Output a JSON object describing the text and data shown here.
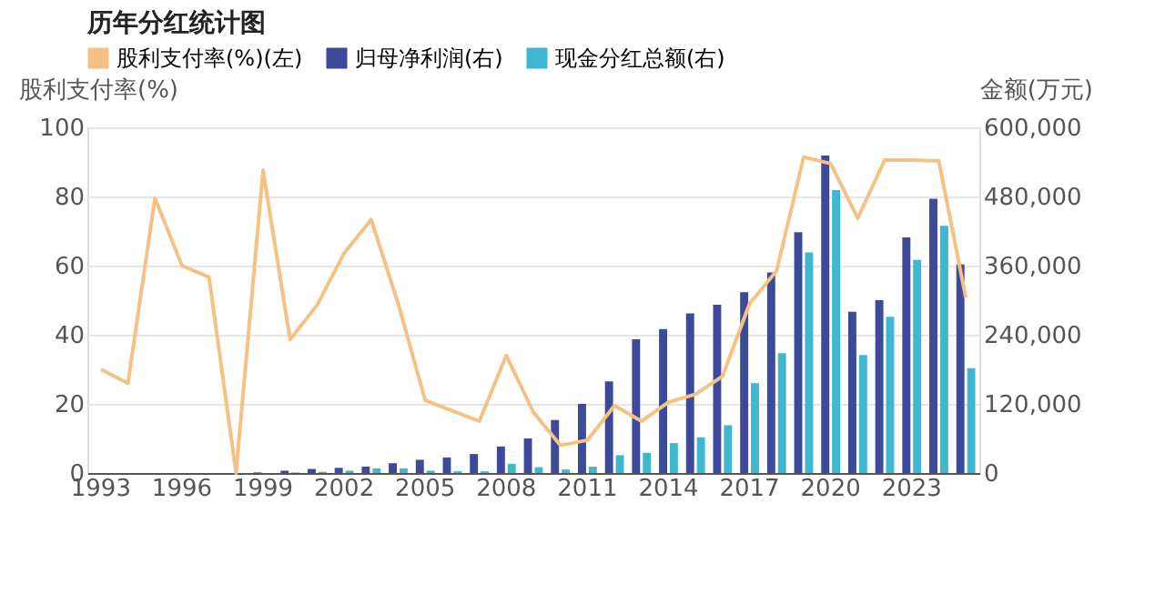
{
  "chart_data": {
    "type": "bar",
    "title": "历年分红统计图",
    "categories": [
      "1993",
      null,
      null,
      "1996",
      null,
      null,
      "1999",
      null,
      null,
      "2002",
      null,
      null,
      "2005",
      null,
      null,
      "2008",
      null,
      null,
      "2011",
      null,
      null,
      "2014",
      null,
      null,
      "2017",
      null,
      null,
      "2020",
      null,
      null,
      "2023",
      null,
      null
    ],
    "series": [
      {
        "name": "股利支付率(%)(左)",
        "type": "line",
        "color": "#f5c185",
        "values": [
          30,
          26,
          79.5,
          60,
          56.7,
          0,
          87.6,
          38.6,
          48.6,
          63.6,
          73.3,
          49,
          21,
          18,
          15,
          34,
          17.6,
          8,
          9.5,
          19.5,
          15,
          20.5,
          22.8,
          28,
          49,
          58.5,
          91.4,
          89.5,
          73.7,
          90.5,
          90.5,
          90.3,
          50.7
        ]
      },
      {
        "name": "归母净利润(右)",
        "axis": "y2",
        "color": "#3d4a9a",
        "values": [
          0,
          0,
          0,
          0,
          0,
          0,
          1000,
          4000,
          7000,
          9000,
          11000,
          17000,
          23000,
          27000,
          33000,
          46000,
          60000,
          92000,
          120000,
          159000,
          232000,
          250000,
          277000,
          292000,
          314000,
          348000,
          418000,
          551000,
          280000,
          300000,
          409000,
          476000,
          362000
        ]
      },
      {
        "name": "现金分红总额(右)",
        "axis": "y2",
        "color": "#3fb8cf",
        "values": [
          0,
          0,
          0,
          0,
          0,
          0,
          0,
          1000,
          2000,
          4000,
          8000,
          8000,
          4000,
          3000,
          3000,
          16000,
          10000,
          6000,
          11000,
          31000,
          35000,
          52000,
          62000,
          83000,
          156000,
          208000,
          383000,
          491000,
          205000,
          271000,
          370000,
          429000,
          182000
        ]
      }
    ],
    "ylabel": "股利支付率(%)",
    "y2label": "金额(万元)",
    "ylim": [
      0,
      100
    ],
    "yticks": [
      0,
      20,
      40,
      60,
      80,
      100
    ],
    "y2lim": [
      0,
      600000
    ],
    "y2ticks": [
      0,
      {
        "value": 120000,
        "label": "120,000"
      },
      {
        "value": 240000,
        "label": "240,000"
      },
      {
        "value": 360000,
        "label": "360,000"
      },
      {
        "value": 480000,
        "label": "480,000"
      },
      {
        "value": 600000,
        "label": "600,000"
      }
    ],
    "grid": "y",
    "legend": "top"
  }
}
